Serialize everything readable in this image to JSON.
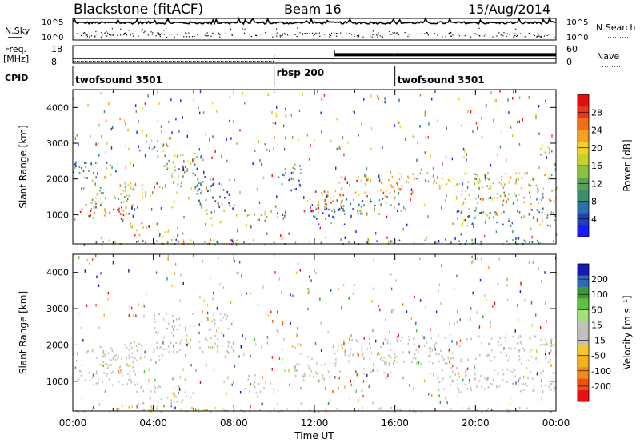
{
  "header": {
    "site": "Blackstone (fitACF)",
    "beam": "Beam 16",
    "date": "15/Aug/2014"
  },
  "summary": {
    "nsky_label": "N.Sky",
    "nsearch_label": "N.Search",
    "freq_label": "Freq.",
    "freq_unit": "[MHz]",
    "nave_label": "Nave",
    "cpid_label": "CPID",
    "noise_ticks": [
      "10^5",
      "10^0"
    ],
    "freq_ticks": [
      "18",
      "8"
    ],
    "nave_ticks": [
      "60",
      "0"
    ],
    "cpid_segments": [
      {
        "name": "twofsound 3501",
        "start": 0,
        "end": 10
      },
      {
        "name": "rbsp 200",
        "start": 10,
        "end": 16
      },
      {
        "name": "twofsound 3501",
        "start": 16,
        "end": 24
      }
    ],
    "nave_steps": [
      {
        "start": 0,
        "end": 10,
        "value": 6
      },
      {
        "start": 10,
        "end": 13,
        "value": 16
      },
      {
        "start": 13,
        "end": 16,
        "value": 29
      },
      {
        "start": 16,
        "end": 24,
        "value": 29
      }
    ]
  },
  "chart_data": [
    {
      "type": "heatmap",
      "name": "power",
      "ylabel": "Slant Range [km]",
      "xlabel": "Time UT",
      "ylim": [
        180,
        4500
      ],
      "xlim": [
        0,
        24
      ],
      "yticks": [
        "1000",
        "2000",
        "3000",
        "4000"
      ],
      "xticks": [
        "00:00",
        "04:00",
        "08:00",
        "12:00",
        "16:00",
        "20:00",
        "00:00"
      ],
      "colorbar": {
        "label": "Power [dB]",
        "ticks": [
          "28",
          "24",
          "20",
          "16",
          "12",
          "8",
          "4"
        ],
        "range": [
          0,
          30
        ],
        "colors": [
          "#1a1aff",
          "#1f3fb4",
          "#2f6fa8",
          "#3b8f6a",
          "#5aa05a",
          "#8ac140",
          "#c8d030",
          "#f2d228",
          "#f5a020",
          "#f07018",
          "#e83818",
          "#e01010"
        ]
      },
      "regions": [
        {
          "t0": 0.0,
          "t1": 3.2,
          "r0": 900,
          "r1": 1300,
          "v": 27
        },
        {
          "t0": 0.5,
          "t1": 3.0,
          "r0": 1300,
          "r1": 1800,
          "v": 14
        },
        {
          "t0": 2.5,
          "t1": 4.5,
          "r0": 1500,
          "r1": 1900,
          "v": 20
        },
        {
          "t0": 2.8,
          "t1": 3.8,
          "r0": 400,
          "r1": 800,
          "v": 22
        },
        {
          "t0": 4.0,
          "t1": 5.5,
          "r0": 400,
          "r1": 700,
          "v": 12
        },
        {
          "t0": 0.0,
          "t1": 2.0,
          "r0": 2000,
          "r1": 2500,
          "v": 9
        },
        {
          "t0": 2.5,
          "t1": 4.8,
          "r0": 2800,
          "r1": 3100,
          "v": 13
        },
        {
          "t0": 4.5,
          "t1": 6.5,
          "r0": 1800,
          "r1": 2800,
          "v": 11
        },
        {
          "t0": 6.0,
          "t1": 8.0,
          "r0": 1200,
          "r1": 2100,
          "v": 7
        },
        {
          "t0": 6.5,
          "t1": 7.5,
          "r0": 800,
          "r1": 1200,
          "v": 14
        },
        {
          "t0": 8.5,
          "t1": 9.8,
          "r0": 800,
          "r1": 1100,
          "v": 14
        },
        {
          "t0": 9.0,
          "t1": 10.0,
          "r0": 2800,
          "r1": 3000,
          "v": 12
        },
        {
          "t0": 10.2,
          "t1": 11.3,
          "r0": 1700,
          "r1": 2500,
          "v": 8
        },
        {
          "t0": 10.0,
          "t1": 10.6,
          "r0": 900,
          "r1": 1400,
          "v": 8
        },
        {
          "t0": 11.2,
          "t1": 13.0,
          "r0": 1100,
          "r1": 1700,
          "v": 22
        },
        {
          "t0": 11.8,
          "t1": 13.5,
          "r0": 700,
          "r1": 1300,
          "v": 6
        },
        {
          "t0": 13.0,
          "t1": 16.0,
          "r0": 1500,
          "r1": 2100,
          "v": 21
        },
        {
          "t0": 13.0,
          "t1": 16.5,
          "r0": 1000,
          "r1": 1500,
          "v": 7
        },
        {
          "t0": 16.0,
          "t1": 24.0,
          "r0": 1700,
          "r1": 2200,
          "v": 16
        },
        {
          "t0": 19.0,
          "t1": 24.0,
          "r0": 1300,
          "r1": 1700,
          "v": 19
        },
        {
          "t0": 19.0,
          "t1": 24.0,
          "r0": 700,
          "r1": 1200,
          "v": 10
        },
        {
          "t0": 22.5,
          "t1": 23.8,
          "r0": 2700,
          "r1": 3000,
          "v": 14
        },
        {
          "t0": 0.0,
          "t1": 24.0,
          "r0": 180,
          "r1": 320,
          "v": 10
        },
        {
          "t0": 2.0,
          "t1": 8.0,
          "r0": 180,
          "r1": 320,
          "v": 22
        }
      ]
    },
    {
      "type": "heatmap",
      "name": "velocity",
      "ylabel": "Slant Range [km]",
      "xlabel": "Time UT",
      "ylim": [
        180,
        4500
      ],
      "xlim": [
        0,
        24
      ],
      "yticks": [
        "1000",
        "2000",
        "3000",
        "4000"
      ],
      "xticks": [
        "00:00",
        "04:00",
        "08:00",
        "12:00",
        "16:00",
        "20:00",
        "00:00"
      ],
      "colorbar": {
        "label": "Velocity [m s⁻¹]",
        "ticks": [
          "200",
          "100",
          "50",
          "15",
          "-15",
          "-50",
          "-100",
          "-200"
        ],
        "range": [
          -250,
          250
        ],
        "colors": [
          "#e81010",
          "#f05010",
          "#f08a18",
          "#f5b020",
          "#f5c830",
          "#c0c0bc",
          "#c0c0bc",
          "#a0e080",
          "#60c040",
          "#3a9a3a",
          "#2e6bb0",
          "#1a1ab0"
        ]
      },
      "regions": [
        {
          "t0": 0.0,
          "t1": 3.2,
          "r0": 900,
          "r1": 1800,
          "v": 0
        },
        {
          "t0": 1.3,
          "t1": 2.8,
          "r0": 1200,
          "r1": 1500,
          "v": -70
        },
        {
          "t0": 0.5,
          "t1": 4.5,
          "r0": 1600,
          "r1": 2100,
          "v": 0
        },
        {
          "t0": 4.0,
          "t1": 8.0,
          "r0": 1800,
          "r1": 2900,
          "v": -5
        },
        {
          "t0": 3.0,
          "t1": 6.0,
          "r0": 400,
          "r1": 900,
          "v": 0
        },
        {
          "t0": 8.5,
          "t1": 10.0,
          "r0": 700,
          "r1": 1200,
          "v": 0
        },
        {
          "t0": 11.0,
          "t1": 13.0,
          "r0": 1100,
          "r1": 1800,
          "v": 0
        },
        {
          "t0": 13.0,
          "t1": 16.0,
          "r0": 1200,
          "r1": 2200,
          "v": 0
        },
        {
          "t0": 16.0,
          "t1": 24.0,
          "r0": 1500,
          "r1": 2300,
          "v": 0
        },
        {
          "t0": 18.0,
          "t1": 24.0,
          "r0": 700,
          "r1": 1400,
          "v": 0
        },
        {
          "t0": 2.0,
          "t1": 8.0,
          "r0": 180,
          "r1": 350,
          "v": -80
        },
        {
          "t0": 0.0,
          "t1": 24.0,
          "r0": 180,
          "r1": 300,
          "v": -20
        }
      ]
    }
  ]
}
